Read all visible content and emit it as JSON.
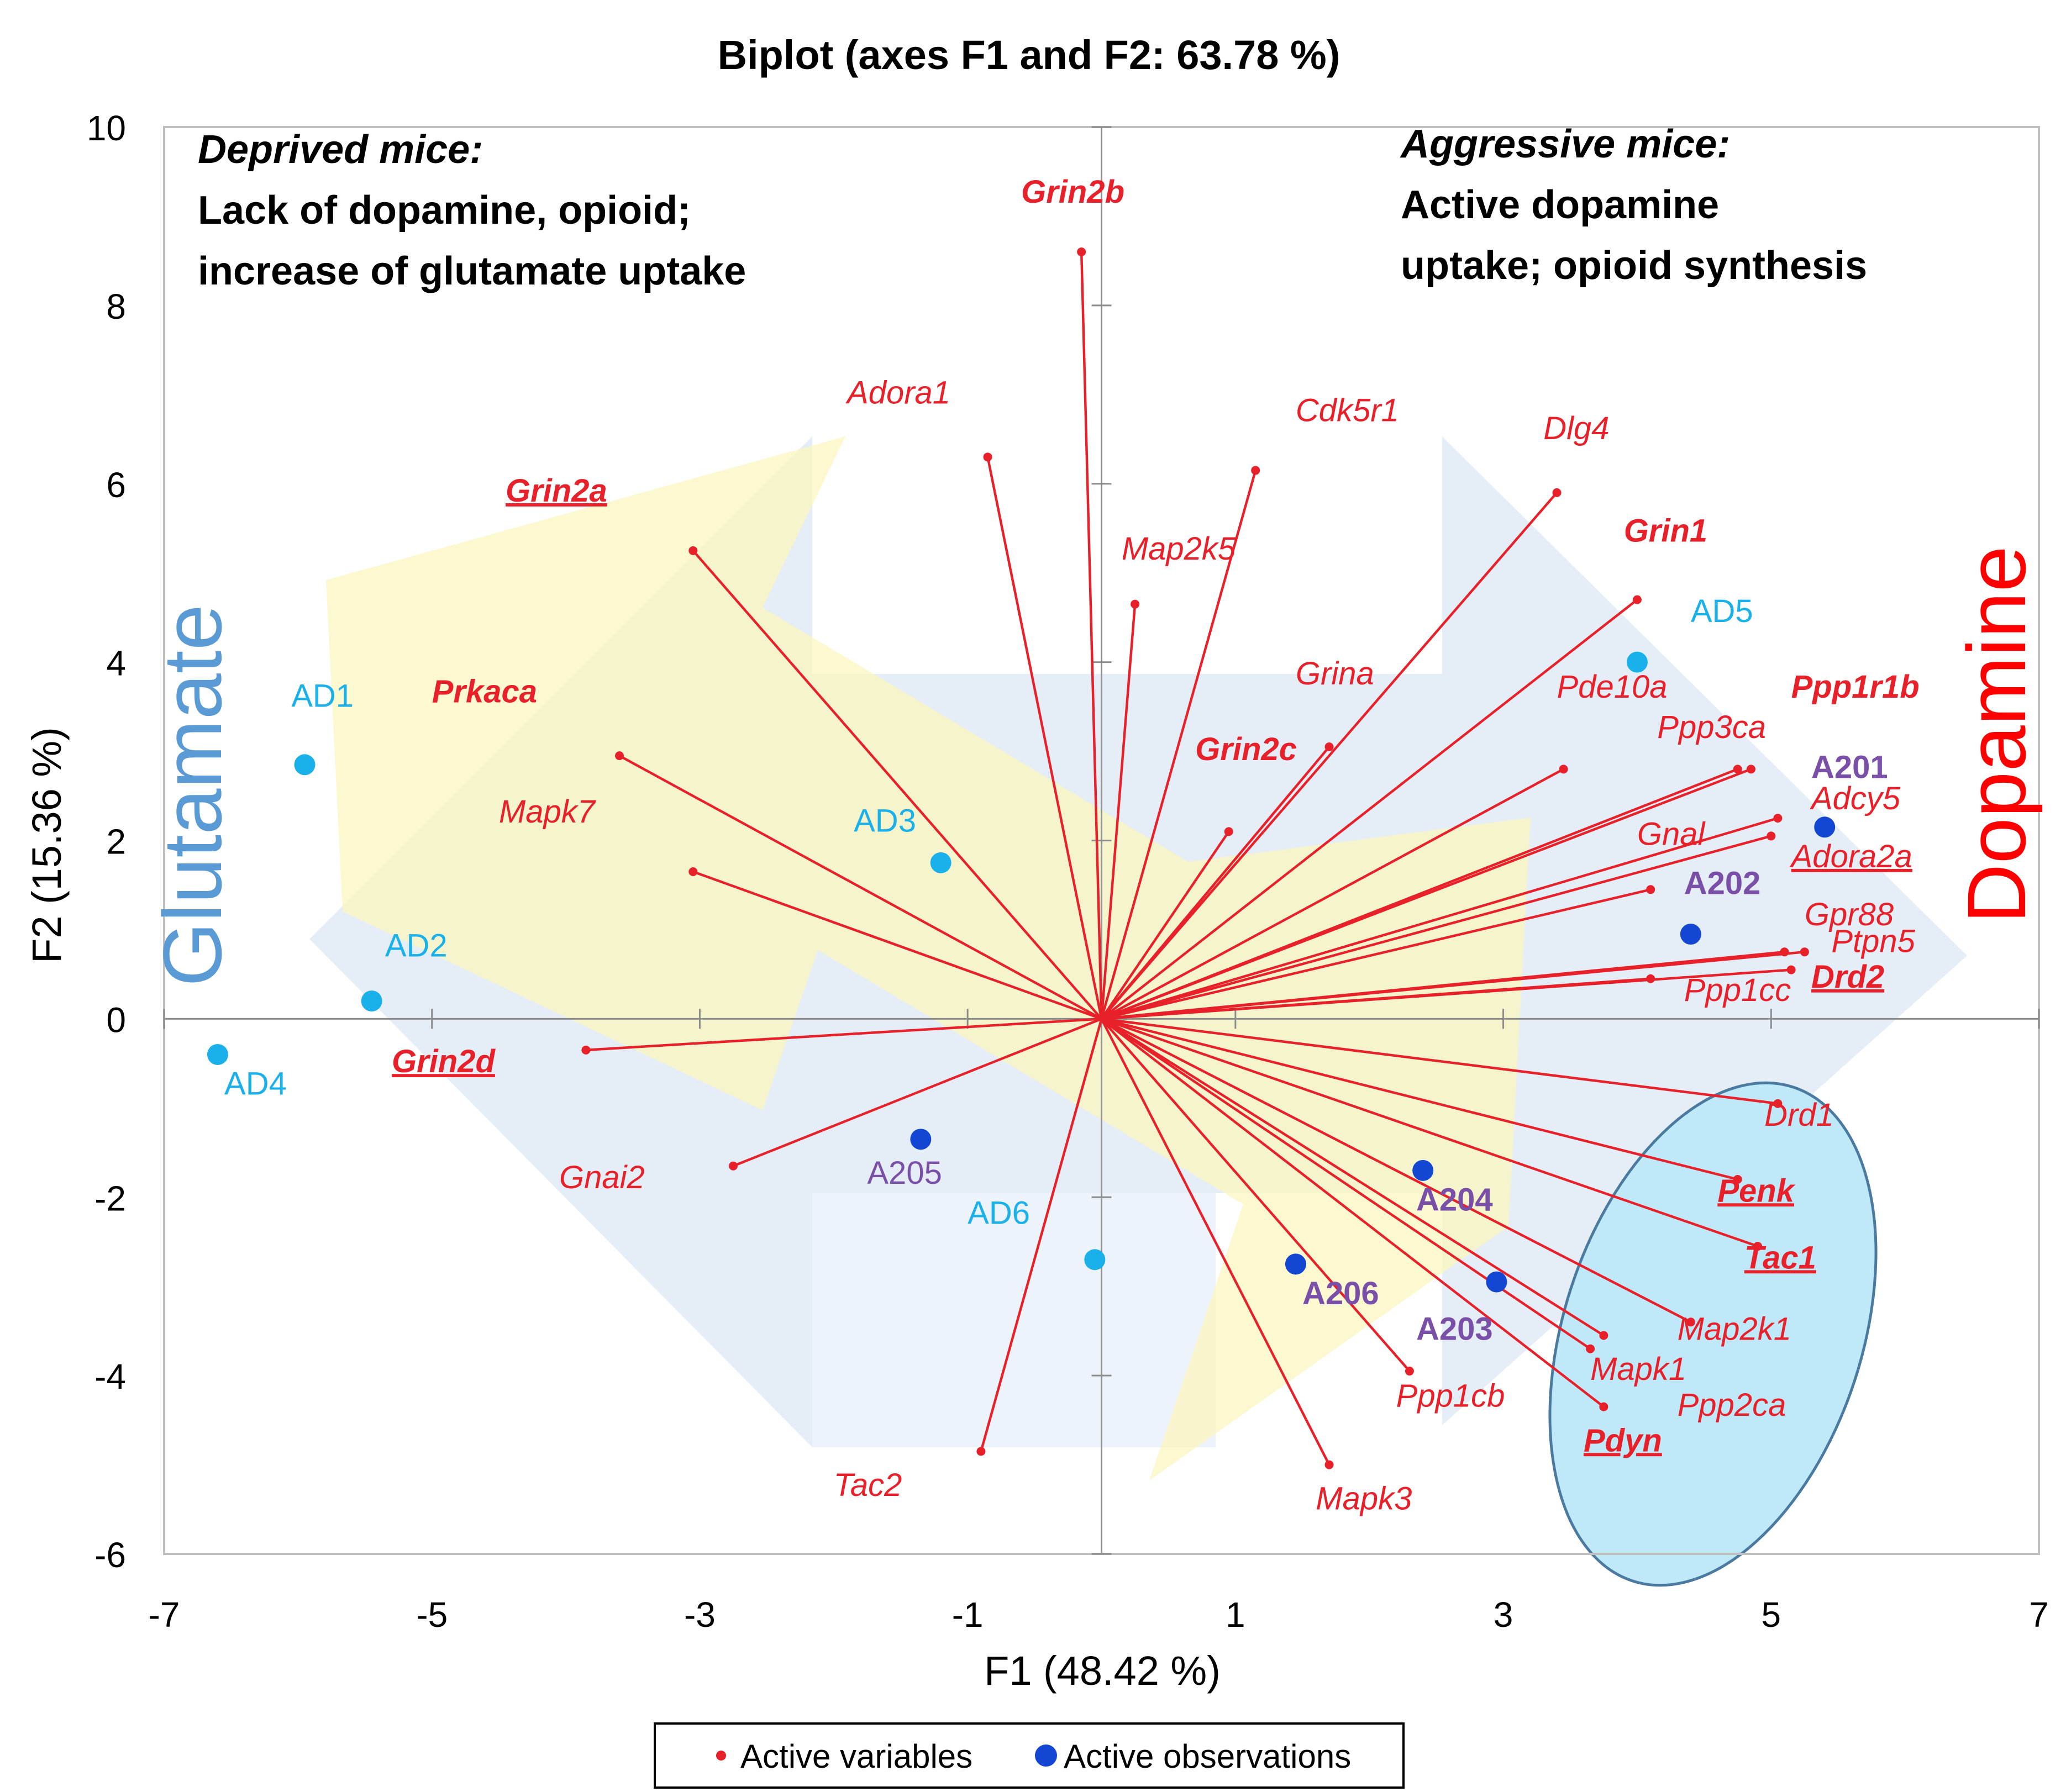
{
  "chart_data": {
    "type": "scatter",
    "subtype": "biplot",
    "title": "Biplot (axes F1 and F2: 63.78 %)",
    "xlabel": "F1 (48.42 %)",
    "ylabel": "F2 (15.36 %)",
    "xlim": [
      -7,
      7
    ],
    "ylim": [
      -6,
      10
    ],
    "xticks": [
      -7,
      -5,
      -3,
      -1,
      1,
      3,
      5,
      7
    ],
    "yticks": [
      10,
      8,
      6,
      4,
      2,
      0,
      -2,
      -4,
      -6
    ],
    "xtick_labels": [
      "-7",
      "-5",
      "-3",
      "-1",
      "1",
      "3",
      "5",
      "7"
    ],
    "ytick_labels": [
      "10",
      "8",
      "6",
      "4",
      "2",
      "0",
      "-2",
      "-4",
      "-6"
    ],
    "legend": {
      "placement": "bottom",
      "variables": "Active variables",
      "observations": "Active observations"
    },
    "annotations": {
      "deprived_title": "Deprived mice:",
      "deprived_line1": "Lack of dopamine, opioid;",
      "deprived_line2": "increase of glutamate uptake",
      "aggressive_title": "Aggressive mice:",
      "aggressive_line1": "Active dopamine",
      "aggressive_line2": "uptake; opioid synthesis",
      "glutamate": "Glutamate",
      "dopamine": "Dopamine"
    },
    "colors": {
      "variable": "#e8202a",
      "obs_deprived": "#1ab0ea",
      "obs_aggressive": "#1446d4",
      "obs_aggr_label": "#7a4fa8",
      "ellipse_fill": "#bfe8f8",
      "ellipse_stroke": "#4a7aa0",
      "glutamate_text": "#5b9bd5",
      "dopamine_text": "#ff0000",
      "yellow_arrow": "#fbf6bf",
      "blue_arrow": "#e1ebf6"
    },
    "variables": [
      {
        "name": "Grin2b",
        "x": -0.15,
        "y": 8.6,
        "lx": -0.6,
        "ly": 9.15,
        "bold": true,
        "underline": false
      },
      {
        "name": "Adora1",
        "x": -0.85,
        "y": 6.3,
        "lx": -1.9,
        "ly": 6.9,
        "bold": false,
        "underline": false
      },
      {
        "name": "Cdk5r1",
        "x": 1.15,
        "y": 6.15,
        "lx": 1.45,
        "ly": 6.7,
        "bold": false,
        "underline": false
      },
      {
        "name": "Grin2a",
        "x": -3.05,
        "y": 5.25,
        "lx": -4.45,
        "ly": 5.8,
        "bold": true,
        "underline": true
      },
      {
        "name": "Map2k5",
        "x": 0.25,
        "y": 4.65,
        "lx": 0.15,
        "ly": 5.15,
        "bold": false,
        "underline": false
      },
      {
        "name": "Dlg4",
        "x": 3.4,
        "y": 5.9,
        "lx": 3.3,
        "ly": 6.5,
        "bold": false,
        "underline": false
      },
      {
        "name": "Grin1",
        "x": 4.0,
        "y": 4.7,
        "lx": 3.9,
        "ly": 5.35,
        "bold": true,
        "underline": false
      },
      {
        "name": "Prkaca",
        "x": -3.6,
        "y": 2.95,
        "lx": -5.0,
        "ly": 3.55,
        "bold": true,
        "underline": false
      },
      {
        "name": "Grina",
        "x": 1.7,
        "y": 3.05,
        "lx": 1.45,
        "ly": 3.75,
        "bold": false,
        "underline": false
      },
      {
        "name": "Pde10a",
        "x": 3.45,
        "y": 2.8,
        "lx": 3.4,
        "ly": 3.6,
        "bold": false,
        "underline": false
      },
      {
        "name": "Ppp1r1b",
        "x": 4.85,
        "y": 2.8,
        "lx": 5.15,
        "ly": 3.6,
        "bold": true,
        "underline": false
      },
      {
        "name": "Ppp3ca",
        "x": 4.75,
        "y": 2.8,
        "lx": 4.15,
        "ly": 3.15,
        "bold": false,
        "underline": false
      },
      {
        "name": "Grin2c",
        "x": 0.95,
        "y": 2.1,
        "lx": 0.7,
        "ly": 2.9,
        "bold": true,
        "underline": false
      },
      {
        "name": "Mapk7",
        "x": -3.05,
        "y": 1.65,
        "lx": -4.5,
        "ly": 2.2,
        "bold": false,
        "underline": false
      },
      {
        "name": "Adcy5",
        "x": 5.05,
        "y": 2.25,
        "lx": 5.3,
        "ly": 2.35,
        "bold": false,
        "underline": false
      },
      {
        "name": "Gnal",
        "x": 5.0,
        "y": 2.05,
        "lx": 4.0,
        "ly": 1.95,
        "bold": false,
        "underline": false
      },
      {
        "name": "Adora2a",
        "x": 4.1,
        "y": 1.45,
        "lx": 5.15,
        "ly": 1.7,
        "bold": false,
        "underline": true
      },
      {
        "name": "Gpr88",
        "x": 5.1,
        "y": 0.75,
        "lx": 5.25,
        "ly": 1.05,
        "bold": false,
        "underline": false
      },
      {
        "name": "Ptpn5",
        "x": 5.25,
        "y": 0.75,
        "lx": 5.45,
        "ly": 0.75,
        "bold": false,
        "underline": false
      },
      {
        "name": "Ppp1cc",
        "x": 4.1,
        "y": 0.45,
        "lx": 4.35,
        "ly": 0.2,
        "bold": false,
        "underline": false
      },
      {
        "name": "Drd2",
        "x": 5.15,
        "y": 0.55,
        "lx": 5.3,
        "ly": 0.35,
        "bold": true,
        "underline": true
      },
      {
        "name": "Grin2d",
        "x": -3.85,
        "y": -0.35,
        "lx": -5.3,
        "ly": -0.6,
        "bold": true,
        "underline": true
      },
      {
        "name": "Drd1",
        "x": 5.05,
        "y": -0.95,
        "lx": 4.95,
        "ly": -1.2,
        "bold": false,
        "underline": false
      },
      {
        "name": "Gnai2",
        "x": -2.75,
        "y": -1.65,
        "lx": -4.05,
        "ly": -1.9,
        "bold": false,
        "underline": false
      },
      {
        "name": "Penk",
        "x": 4.75,
        "y": -1.8,
        "lx": 4.6,
        "ly": -2.05,
        "bold": true,
        "underline": true
      },
      {
        "name": "Tac1",
        "x": 4.9,
        "y": -2.55,
        "lx": 4.8,
        "ly": -2.8,
        "bold": true,
        "underline": true
      },
      {
        "name": "Map2k1",
        "x": 4.4,
        "y": -3.4,
        "lx": 4.3,
        "ly": -3.6,
        "bold": false,
        "underline": false
      },
      {
        "name": "Ppp2ca",
        "x": 3.65,
        "y": -3.7,
        "lx": 4.3,
        "ly": -4.45,
        "bold": false,
        "underline": false
      },
      {
        "name": "Mapk1",
        "x": 3.75,
        "y": -3.55,
        "lx": 3.65,
        "ly": -4.05,
        "bold": false,
        "underline": false
      },
      {
        "name": "Pdyn",
        "x": 3.75,
        "y": -4.35,
        "lx": 3.6,
        "ly": -4.85,
        "bold": true,
        "underline": true
      },
      {
        "name": "Ppp1cb",
        "x": 2.3,
        "y": -3.95,
        "lx": 2.2,
        "ly": -4.35,
        "bold": false,
        "underline": false
      },
      {
        "name": "Mapk3",
        "x": 1.7,
        "y": -5.0,
        "lx": 1.6,
        "ly": -5.5,
        "bold": false,
        "underline": false
      },
      {
        "name": "Tac2",
        "x": -0.9,
        "y": -4.85,
        "lx": -2.0,
        "ly": -5.35,
        "bold": false,
        "underline": false
      }
    ],
    "observations": [
      {
        "name": "AD1",
        "x": -5.95,
        "y": 2.85,
        "group": "deprived",
        "lx": -6.05,
        "ly": 3.5,
        "bold": false
      },
      {
        "name": "AD2",
        "x": -5.45,
        "y": 0.2,
        "group": "deprived",
        "lx": -5.35,
        "ly": 0.7,
        "bold": false
      },
      {
        "name": "AD3",
        "x": -1.2,
        "y": 1.75,
        "group": "deprived",
        "lx": -1.85,
        "ly": 2.1,
        "bold": false
      },
      {
        "name": "AD4",
        "x": -6.6,
        "y": -0.4,
        "group": "deprived",
        "lx": -6.55,
        "ly": -0.85,
        "bold": false
      },
      {
        "name": "AD5",
        "x": 4.0,
        "y": 4.0,
        "group": "deprived",
        "lx": 4.4,
        "ly": 4.45,
        "bold": false
      },
      {
        "name": "AD6",
        "x": -0.05,
        "y": -2.7,
        "group": "deprived",
        "lx": -1.0,
        "ly": -2.3,
        "bold": false
      },
      {
        "name": "A201",
        "x": 5.4,
        "y": 2.15,
        "group": "aggressive",
        "lx": 5.3,
        "ly": 2.7,
        "bold": true
      },
      {
        "name": "A202",
        "x": 4.4,
        "y": 0.95,
        "group": "aggressive",
        "lx": 4.35,
        "ly": 1.4,
        "bold": true
      },
      {
        "name": "A203",
        "x": 2.95,
        "y": -2.95,
        "group": "aggressive",
        "lx": 2.35,
        "ly": -3.6,
        "bold": true
      },
      {
        "name": "A204",
        "x": 2.4,
        "y": -1.7,
        "group": "aggressive",
        "lx": 2.35,
        "ly": -2.15,
        "bold": true
      },
      {
        "name": "A205",
        "x": -1.35,
        "y": -1.35,
        "group": "aggressive",
        "lx": -1.75,
        "ly": -1.85,
        "bold": false
      },
      {
        "name": "A206",
        "x": 1.45,
        "y": -2.75,
        "group": "aggressive",
        "lx": 1.5,
        "ly": -3.2,
        "bold": true
      }
    ]
  }
}
